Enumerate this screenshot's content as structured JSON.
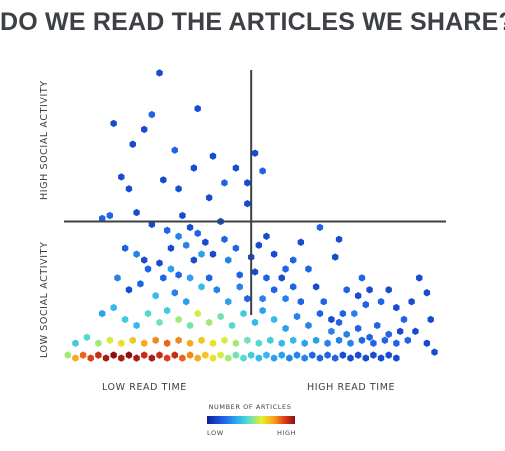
{
  "chart_data": {
    "type": "scatter",
    "title": "DO WE READ THE ARTICLES WE SHARE?",
    "quadrant_labels": {
      "y_high": "HIGH SOCIAL ACTIVITY",
      "y_low": "LOW SOCIAL ACTIVITY",
      "x_low": "LOW READ TIME",
      "x_high": "HIGH READ TIME"
    },
    "xlim": [
      0,
      100
    ],
    "ylim": [
      0,
      100
    ],
    "divider": {
      "x": 49,
      "y": 49
    },
    "legend": {
      "title": "NUMBER OF ARTICLES",
      "low_label": "LOW",
      "high_label": "HIGH",
      "colors": [
        "#0b1f9c",
        "#1e5fe6",
        "#2fb6f0",
        "#5fe0c8",
        "#e9ef2a",
        "#f7a21b",
        "#e03a1a",
        "#8a0f10"
      ]
    },
    "marker": "hexagon",
    "density_scale": [
      0,
      1
    ],
    "points": [
      [
        25,
        99,
        0.1
      ],
      [
        23,
        85,
        0.15
      ],
      [
        13,
        82,
        0.1
      ],
      [
        21,
        80,
        0.1
      ],
      [
        35,
        87,
        0.1
      ],
      [
        18,
        75,
        0.1
      ],
      [
        29,
        73,
        0.15
      ],
      [
        39,
        71,
        0.1
      ],
      [
        34,
        67,
        0.1
      ],
      [
        45,
        67,
        0.1
      ],
      [
        42,
        62,
        0.15
      ],
      [
        50,
        72,
        0.1
      ],
      [
        52,
        66,
        0.15
      ],
      [
        48,
        55,
        0.1
      ],
      [
        48,
        62,
        0.1
      ],
      [
        15,
        64,
        0.1
      ],
      [
        17,
        60,
        0.1
      ],
      [
        26,
        63,
        0.1
      ],
      [
        30,
        60,
        0.1
      ],
      [
        38,
        57,
        0.1
      ],
      [
        31,
        51,
        0.1
      ],
      [
        41,
        49,
        0.1
      ],
      [
        12,
        51,
        0.15
      ],
      [
        10,
        50,
        0.15
      ],
      [
        19,
        52,
        0.1
      ],
      [
        23,
        48,
        0.1
      ],
      [
        27,
        46,
        0.15
      ],
      [
        30,
        44,
        0.2
      ],
      [
        33,
        47,
        0.1
      ],
      [
        35,
        45,
        0.15
      ],
      [
        37,
        42,
        0.1
      ],
      [
        28,
        40,
        0.1
      ],
      [
        32,
        41,
        0.2
      ],
      [
        36,
        38,
        0.25
      ],
      [
        34,
        36,
        0.1
      ],
      [
        39,
        38,
        0.1
      ],
      [
        42,
        43,
        0.15
      ],
      [
        45,
        40,
        0.15
      ],
      [
        43,
        36,
        0.2
      ],
      [
        46,
        31,
        0.15
      ],
      [
        19,
        38,
        0.2
      ],
      [
        21,
        36,
        0.1
      ],
      [
        22,
        33,
        0.15
      ],
      [
        16,
        40,
        0.15
      ],
      [
        25,
        35,
        0.1
      ],
      [
        28,
        33,
        0.25
      ],
      [
        30,
        31,
        0.15
      ],
      [
        33,
        30,
        0.25
      ],
      [
        26,
        30,
        0.15
      ],
      [
        20,
        28,
        0.15
      ],
      [
        14,
        30,
        0.2
      ],
      [
        17,
        26,
        0.1
      ],
      [
        24,
        24,
        0.3
      ],
      [
        29,
        25,
        0.2
      ],
      [
        32,
        22,
        0.25
      ],
      [
        36,
        27,
        0.3
      ],
      [
        38,
        30,
        0.15
      ],
      [
        40,
        26,
        0.2
      ],
      [
        43,
        22,
        0.25
      ],
      [
        46,
        27,
        0.2
      ],
      [
        48,
        23,
        0.15
      ],
      [
        49,
        37,
        0.1
      ],
      [
        51,
        41,
        0.1
      ],
      [
        50,
        32,
        0.1
      ],
      [
        53,
        30,
        0.15
      ],
      [
        52,
        23,
        0.2
      ],
      [
        55,
        26,
        0.15
      ],
      [
        58,
        23,
        0.2
      ],
      [
        60,
        27,
        0.15
      ],
      [
        62,
        22,
        0.15
      ],
      [
        58,
        33,
        0.15
      ],
      [
        53,
        44,
        0.1
      ],
      [
        55,
        38,
        0.1
      ],
      [
        60,
        36,
        0.15
      ],
      [
        57,
        30,
        0.1
      ],
      [
        64,
        33,
        0.15
      ],
      [
        62,
        42,
        0.1
      ],
      [
        66,
        27,
        0.1
      ],
      [
        68,
        22,
        0.15
      ],
      [
        72,
        43,
        0.1
      ],
      [
        71,
        37,
        0.1
      ],
      [
        67,
        47,
        0.15
      ],
      [
        74,
        26,
        0.15
      ],
      [
        76,
        18,
        0.2
      ],
      [
        79,
        21,
        0.15
      ],
      [
        80,
        26,
        0.1
      ],
      [
        83,
        22,
        0.15
      ],
      [
        85,
        26,
        0.1
      ],
      [
        87,
        20,
        0.1
      ],
      [
        89,
        16,
        0.15
      ],
      [
        91,
        22,
        0.1
      ],
      [
        93,
        30,
        0.1
      ],
      [
        95,
        25,
        0.1
      ],
      [
        96,
        16,
        0.1
      ],
      [
        78,
        30,
        0.15
      ],
      [
        77,
        24,
        0.1
      ],
      [
        73,
        18,
        0.15
      ],
      [
        70,
        16,
        0.1
      ],
      [
        10,
        18,
        0.25
      ],
      [
        13,
        20,
        0.3
      ],
      [
        16,
        16,
        0.35
      ],
      [
        19,
        14,
        0.3
      ],
      [
        22,
        18,
        0.4
      ],
      [
        25,
        15,
        0.45
      ],
      [
        27,
        19,
        0.35
      ],
      [
        30,
        16,
        0.5
      ],
      [
        33,
        14,
        0.45
      ],
      [
        35,
        18,
        0.55
      ],
      [
        38,
        15,
        0.5
      ],
      [
        41,
        17,
        0.45
      ],
      [
        44,
        14,
        0.4
      ],
      [
        47,
        18,
        0.35
      ],
      [
        50,
        15,
        0.3
      ],
      [
        52,
        19,
        0.25
      ],
      [
        55,
        16,
        0.3
      ],
      [
        58,
        13,
        0.25
      ],
      [
        61,
        17,
        0.2
      ],
      [
        64,
        14,
        0.2
      ],
      [
        67,
        18,
        0.15
      ],
      [
        70,
        12,
        0.2
      ],
      [
        72,
        15,
        0.15
      ],
      [
        74,
        11,
        0.2
      ],
      [
        77,
        13,
        0.15
      ],
      [
        80,
        10,
        0.15
      ],
      [
        82,
        14,
        0.15
      ],
      [
        85,
        11,
        0.15
      ],
      [
        88,
        12,
        0.1
      ],
      [
        90,
        9,
        0.15
      ],
      [
        92,
        12,
        0.1
      ],
      [
        95,
        8,
        0.1
      ],
      [
        97,
        5,
        0.1
      ],
      [
        3,
        8,
        0.35
      ],
      [
        6,
        10,
        0.4
      ],
      [
        9,
        8,
        0.5
      ],
      [
        12,
        9,
        0.55
      ],
      [
        15,
        8,
        0.6
      ],
      [
        18,
        9,
        0.65
      ],
      [
        21,
        8,
        0.7
      ],
      [
        24,
        9,
        0.75
      ],
      [
        27,
        8,
        0.8
      ],
      [
        30,
        9,
        0.75
      ],
      [
        33,
        8,
        0.7
      ],
      [
        36,
        9,
        0.65
      ],
      [
        39,
        8,
        0.6
      ],
      [
        42,
        9,
        0.55
      ],
      [
        45,
        8,
        0.5
      ],
      [
        48,
        9,
        0.45
      ],
      [
        51,
        8,
        0.4
      ],
      [
        54,
        9,
        0.35
      ],
      [
        57,
        8,
        0.3
      ],
      [
        60,
        9,
        0.3
      ],
      [
        63,
        8,
        0.25
      ],
      [
        66,
        9,
        0.25
      ],
      [
        69,
        8,
        0.2
      ],
      [
        72,
        9,
        0.2
      ],
      [
        75,
        8,
        0.2
      ],
      [
        78,
        9,
        0.15
      ],
      [
        81,
        8,
        0.15
      ],
      [
        84,
        9,
        0.15
      ],
      [
        87,
        8,
        0.15
      ],
      [
        1,
        4,
        0.5
      ],
      [
        3,
        3,
        0.7
      ],
      [
        5,
        4,
        0.8
      ],
      [
        7,
        3,
        0.85
      ],
      [
        9,
        4,
        0.9
      ],
      [
        11,
        3,
        0.95
      ],
      [
        13,
        4,
        1.0
      ],
      [
        15,
        3,
        0.95
      ],
      [
        17,
        4,
        1.0
      ],
      [
        19,
        3,
        0.95
      ],
      [
        21,
        4,
        0.9
      ],
      [
        23,
        3,
        0.95
      ],
      [
        25,
        4,
        0.9
      ],
      [
        27,
        3,
        0.85
      ],
      [
        29,
        4,
        0.9
      ],
      [
        31,
        3,
        0.8
      ],
      [
        33,
        4,
        0.75
      ],
      [
        35,
        3,
        0.7
      ],
      [
        37,
        4,
        0.65
      ],
      [
        39,
        3,
        0.6
      ],
      [
        41,
        4,
        0.55
      ],
      [
        43,
        3,
        0.5
      ],
      [
        45,
        4,
        0.45
      ],
      [
        47,
        3,
        0.4
      ],
      [
        49,
        4,
        0.35
      ],
      [
        51,
        3,
        0.3
      ],
      [
        53,
        4,
        0.3
      ],
      [
        55,
        3,
        0.25
      ],
      [
        57,
        4,
        0.25
      ],
      [
        59,
        3,
        0.2
      ],
      [
        61,
        4,
        0.2
      ],
      [
        63,
        3,
        0.2
      ],
      [
        65,
        4,
        0.15
      ],
      [
        67,
        3,
        0.15
      ],
      [
        69,
        4,
        0.15
      ],
      [
        71,
        3,
        0.15
      ],
      [
        73,
        4,
        0.1
      ],
      [
        75,
        3,
        0.1
      ],
      [
        77,
        4,
        0.1
      ],
      [
        79,
        3,
        0.1
      ],
      [
        81,
        4,
        0.1
      ],
      [
        83,
        3,
        0.1
      ],
      [
        85,
        4,
        0.1
      ],
      [
        87,
        3,
        0.1
      ]
    ]
  }
}
